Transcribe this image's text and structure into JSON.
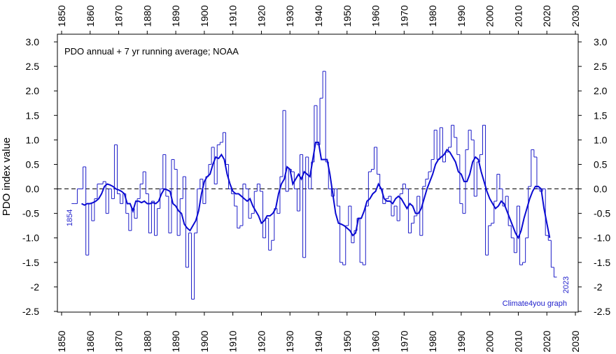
{
  "chart_data": {
    "type": "line",
    "title": "PDO annual + 7 yr running average; NOAA",
    "y_label": "PDO index value",
    "annotations": [
      "1854",
      "2023",
      "Climate4you graph"
    ],
    "xlim": [
      1850,
      2030
    ],
    "xticks": [
      1850,
      1860,
      1870,
      1880,
      1890,
      1900,
      1910,
      1920,
      1930,
      1940,
      1950,
      1960,
      1970,
      1980,
      1990,
      2000,
      2010,
      2020,
      2030
    ],
    "ylim": [
      -2.5,
      3.0
    ],
    "yticks": [
      -2.5,
      -2.0,
      {
        "value": -1.5,
        "label": "-1.5"
      },
      {
        "value": -1,
        "label": "-1.0"
      },
      -0.5,
      {
        "value": 0,
        "label": "0.0"
      },
      0.5,
      {
        "value": 1,
        "label": "1.0"
      },
      1.5,
      {
        "value": 2,
        "label": "2.0"
      },
      2.5,
      {
        "value": 3,
        "label": "3.0"
      }
    ],
    "zero_line": true,
    "series": [
      {
        "style": "step",
        "color": "#1c1cc8",
        "x": [
          1854,
          1855,
          1856,
          1857,
          1858,
          1859,
          1860,
          1861,
          1862,
          1863,
          1864,
          1865,
          1866,
          1867,
          1868,
          1869,
          1870,
          1871,
          1872,
          1873,
          1874,
          1875,
          1876,
          1877,
          1878,
          1879,
          1880,
          1881,
          1882,
          1883,
          1884,
          1885,
          1886,
          1887,
          1888,
          1889,
          1890,
          1891,
          1892,
          1893,
          1894,
          1895,
          1896,
          1897,
          1898,
          1899,
          1900,
          1901,
          1902,
          1903,
          1904,
          1905,
          1906,
          1907,
          1908,
          1909,
          1910,
          1911,
          1912,
          1913,
          1914,
          1915,
          1916,
          1917,
          1918,
          1919,
          1920,
          1921,
          1922,
          1923,
          1924,
          1925,
          1926,
          1927,
          1928,
          1929,
          1930,
          1931,
          1932,
          1933,
          1934,
          1935,
          1936,
          1937,
          1938,
          1939,
          1940,
          1941,
          1942,
          1943,
          1944,
          1945,
          1946,
          1947,
          1948,
          1949,
          1950,
          1951,
          1952,
          1953,
          1954,
          1955,
          1956,
          1957,
          1958,
          1959,
          1960,
          1961,
          1962,
          1963,
          1964,
          1965,
          1966,
          1967,
          1968,
          1969,
          1970,
          1971,
          1972,
          1973,
          1974,
          1975,
          1976,
          1977,
          1978,
          1979,
          1980,
          1981,
          1982,
          1983,
          1984,
          1985,
          1986,
          1987,
          1988,
          1989,
          1990,
          1991,
          1992,
          1993,
          1994,
          1995,
          1996,
          1997,
          1998,
          1999,
          2000,
          2001,
          2002,
          2003,
          2004,
          2005,
          2006,
          2007,
          2008,
          2009,
          2010,
          2011,
          2012,
          2013,
          2014,
          2015,
          2016,
          2017,
          2018,
          2019,
          2020,
          2021,
          2022,
          2023
        ],
        "values": [
          -0.3,
          -0.3,
          0.0,
          0.0,
          0.45,
          -1.35,
          -0.3,
          -0.65,
          -0.2,
          0.1,
          0.1,
          0.15,
          -0.5,
          0.0,
          -0.2,
          0.9,
          -0.1,
          -0.3,
          -0.1,
          -0.5,
          -0.85,
          -0.4,
          -0.6,
          -0.2,
          0.1,
          0.35,
          -0.1,
          -0.9,
          -0.25,
          -0.95,
          -0.4,
          0.0,
          0.7,
          -0.15,
          -0.9,
          0.6,
          0.4,
          -0.95,
          -0.2,
          0.25,
          -1.6,
          -0.9,
          -2.25,
          -0.9,
          0.0,
          0.2,
          -0.3,
          0.25,
          0.5,
          0.85,
          0.1,
          0.9,
          0.95,
          1.15,
          0.5,
          0.0,
          -0.1,
          -0.35,
          -0.8,
          -0.75,
          0.1,
          0.0,
          -0.6,
          -0.5,
          -0.05,
          0.1,
          -0.05,
          -1.0,
          -0.6,
          -1.25,
          -1.05,
          -0.4,
          -0.5,
          0.25,
          1.6,
          -0.05,
          0.4,
          0.35,
          0.0,
          -0.45,
          0.7,
          -1.4,
          0.65,
          0.0,
          0.55,
          1.7,
          0.9,
          1.85,
          2.4,
          0.55,
          0.0,
          -0.15,
          0.0,
          -0.35,
          -1.5,
          -1.55,
          -0.75,
          -0.35,
          -1.1,
          -0.85,
          -0.6,
          -1.5,
          -1.55,
          -0.35,
          0.35,
          0.4,
          0.85,
          0.3,
          0.0,
          -0.3,
          -0.2,
          -0.15,
          -0.55,
          -0.35,
          -0.65,
          -0.1,
          0.1,
          0.0,
          -0.9,
          -0.7,
          -0.55,
          -0.15,
          -0.95,
          0.05,
          0.2,
          0.35,
          0.6,
          1.2,
          0.6,
          1.25,
          0.55,
          0.75,
          0.85,
          1.3,
          1.05,
          0.7,
          -0.3,
          -0.5,
          0.8,
          1.2,
          1.0,
          -0.15,
          0.55,
          0.7,
          1.3,
          -1.35,
          -0.75,
          -0.7,
          -0.25,
          0.3,
          0.0,
          -0.35,
          -0.15,
          -0.75,
          -1.0,
          -1.3,
          -0.35,
          -1.55,
          -1.5,
          -1.0,
          0.05,
          0.8,
          0.65,
          0.0,
          -0.05,
          0.0,
          -0.95,
          -1.05,
          -1.6,
          -1.8
        ]
      },
      {
        "style": "line",
        "color": "#0a0ad2",
        "x": [
          1857,
          1858,
          1859,
          1860,
          1861,
          1862,
          1863,
          1864,
          1865,
          1866,
          1867,
          1868,
          1869,
          1870,
          1871,
          1872,
          1873,
          1874,
          1875,
          1876,
          1877,
          1878,
          1879,
          1880,
          1881,
          1882,
          1883,
          1884,
          1885,
          1886,
          1887,
          1888,
          1889,
          1890,
          1891,
          1892,
          1893,
          1894,
          1895,
          1896,
          1897,
          1898,
          1899,
          1900,
          1901,
          1902,
          1903,
          1904,
          1905,
          1906,
          1907,
          1908,
          1909,
          1910,
          1911,
          1912,
          1913,
          1914,
          1915,
          1916,
          1917,
          1918,
          1919,
          1920,
          1921,
          1922,
          1923,
          1924,
          1925,
          1926,
          1927,
          1928,
          1929,
          1930,
          1931,
          1932,
          1933,
          1934,
          1935,
          1936,
          1937,
          1938,
          1939,
          1940,
          1941,
          1942,
          1943,
          1944,
          1945,
          1946,
          1947,
          1948,
          1949,
          1950,
          1951,
          1952,
          1953,
          1954,
          1955,
          1956,
          1957,
          1958,
          1959,
          1960,
          1961,
          1962,
          1963,
          1964,
          1965,
          1966,
          1967,
          1968,
          1969,
          1970,
          1971,
          1972,
          1973,
          1974,
          1975,
          1976,
          1977,
          1978,
          1979,
          1980,
          1981,
          1982,
          1983,
          1984,
          1985,
          1986,
          1987,
          1988,
          1989,
          1990,
          1991,
          1992,
          1993,
          1994,
          1995,
          1996,
          1997,
          1998,
          1999,
          2000,
          2001,
          2002,
          2003,
          2004,
          2005,
          2006,
          2007,
          2008,
          2009,
          2010,
          2011,
          2012,
          2013,
          2014,
          2015,
          2016,
          2017,
          2018,
          2019,
          2020,
          2021
        ],
        "values": [
          -0.3,
          -0.33,
          -0.3,
          -0.3,
          -0.28,
          -0.25,
          -0.2,
          -0.1,
          0.05,
          0.1,
          0.08,
          0.05,
          0.0,
          -0.02,
          -0.05,
          -0.1,
          -0.3,
          -0.3,
          -0.45,
          -0.25,
          -0.25,
          -0.28,
          -0.25,
          -0.3,
          -0.3,
          -0.28,
          -0.3,
          -0.25,
          -0.1,
          0.0,
          -0.02,
          -0.05,
          -0.3,
          -0.35,
          -0.45,
          -0.5,
          -0.72,
          -0.8,
          -0.85,
          -0.75,
          -0.65,
          -0.45,
          -0.1,
          0.15,
          0.25,
          0.3,
          0.5,
          0.65,
          0.62,
          0.7,
          0.6,
          0.3,
          0.1,
          -0.05,
          -0.1,
          -0.1,
          -0.15,
          -0.2,
          -0.25,
          -0.2,
          -0.35,
          -0.45,
          -0.55,
          -0.7,
          -0.65,
          -0.55,
          -0.55,
          -0.5,
          -0.4,
          -0.1,
          0.1,
          0.2,
          0.45,
          0.4,
          0.1,
          0.2,
          0.3,
          0.2,
          0.35,
          0.3,
          0.25,
          0.6,
          0.95,
          0.95,
          0.6,
          0.6,
          0.6,
          0.3,
          -0.1,
          -0.5,
          -0.7,
          -0.72,
          -0.75,
          -0.8,
          -0.85,
          -0.95,
          -0.9,
          -0.6,
          -0.6,
          -0.45,
          -0.25,
          -0.2,
          -0.1,
          -0.05,
          0.1,
          0.0,
          -0.2,
          -0.25,
          -0.25,
          -0.3,
          -0.2,
          -0.15,
          -0.2,
          -0.3,
          -0.4,
          -0.3,
          -0.35,
          -0.5,
          -0.5,
          -0.4,
          -0.2,
          0.0,
          0.15,
          0.3,
          0.5,
          0.6,
          0.65,
          0.7,
          0.8,
          0.75,
          0.65,
          0.55,
          0.35,
          0.3,
          0.15,
          0.15,
          0.3,
          0.55,
          0.65,
          0.6,
          0.35,
          0.15,
          -0.05,
          -0.2,
          -0.3,
          -0.4,
          -0.35,
          -0.25,
          -0.3,
          -0.45,
          -0.6,
          -0.75,
          -0.9,
          -1.0,
          -0.85,
          -0.6,
          -0.4,
          -0.2,
          -0.05,
          0.05,
          0.05,
          0.0,
          -0.4,
          -0.7,
          -1.0
        ]
      }
    ]
  }
}
